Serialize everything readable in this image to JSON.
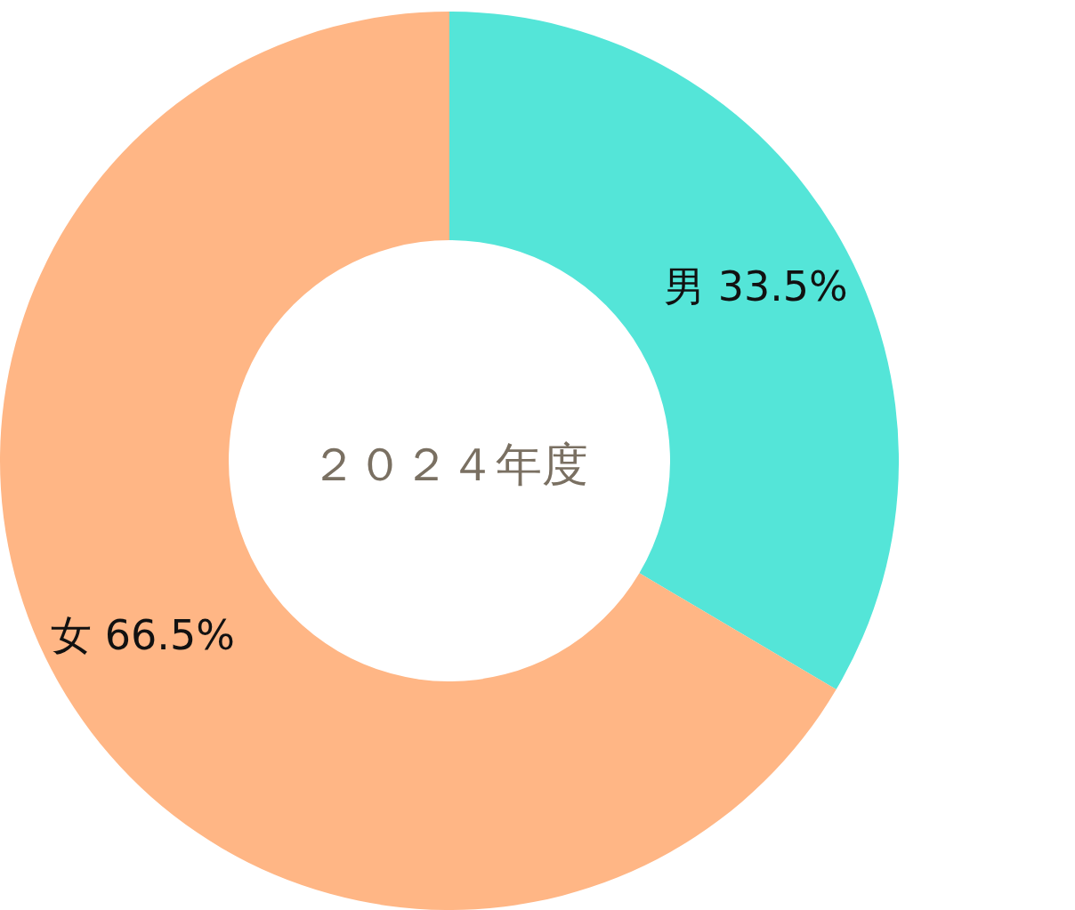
{
  "chart_data": {
    "type": "donut",
    "title": "２０２４年度",
    "categories": [
      "男",
      "女"
    ],
    "values": [
      33.5,
      66.5
    ],
    "colors": [
      "#54e5d8",
      "#ffb685"
    ],
    "value_labels": [
      "33.5%",
      "66.5%"
    ]
  }
}
